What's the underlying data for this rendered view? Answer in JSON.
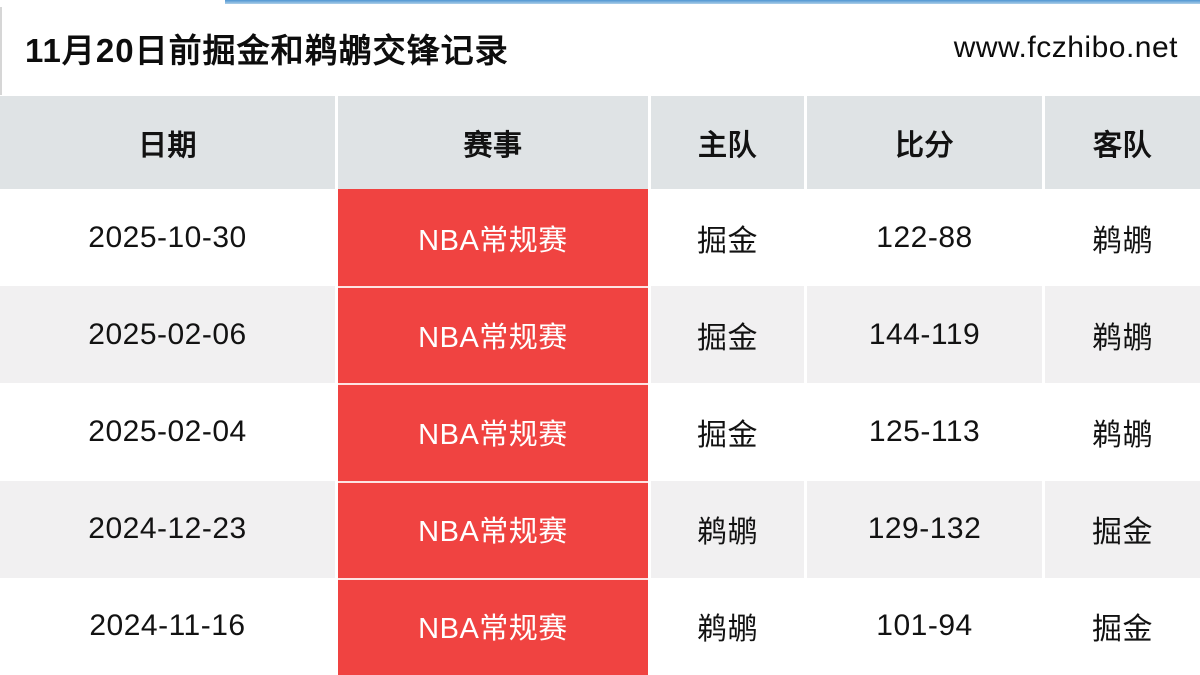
{
  "page": {
    "title": "11月20日前掘金和鹈鹕交锋记录",
    "site_url": "www.fczhibo.net"
  },
  "colors": {
    "accent_red": "#f04341",
    "header_bg": "#dfe3e5",
    "row_alt_bg": "#f1f0f1",
    "top_line_blue": "#4f96d2",
    "text": "#121212",
    "event_text": "#ffffff"
  },
  "table": {
    "columns": [
      "日期",
      "赛事",
      "主队",
      "比分",
      "客队"
    ],
    "rows": [
      {
        "date": "2025-10-30",
        "event": "NBA常规赛",
        "home": "掘金",
        "score": "122-88",
        "away": "鹈鹕"
      },
      {
        "date": "2025-02-06",
        "event": "NBA常规赛",
        "home": "掘金",
        "score": "144-119",
        "away": "鹈鹕"
      },
      {
        "date": "2025-02-04",
        "event": "NBA常规赛",
        "home": "掘金",
        "score": "125-113",
        "away": "鹈鹕"
      },
      {
        "date": "2024-12-23",
        "event": "NBA常规赛",
        "home": "鹈鹕",
        "score": "129-132",
        "away": "掘金"
      },
      {
        "date": "2024-11-16",
        "event": "NBA常规赛",
        "home": "鹈鹕",
        "score": "101-94",
        "away": "掘金"
      }
    ]
  }
}
